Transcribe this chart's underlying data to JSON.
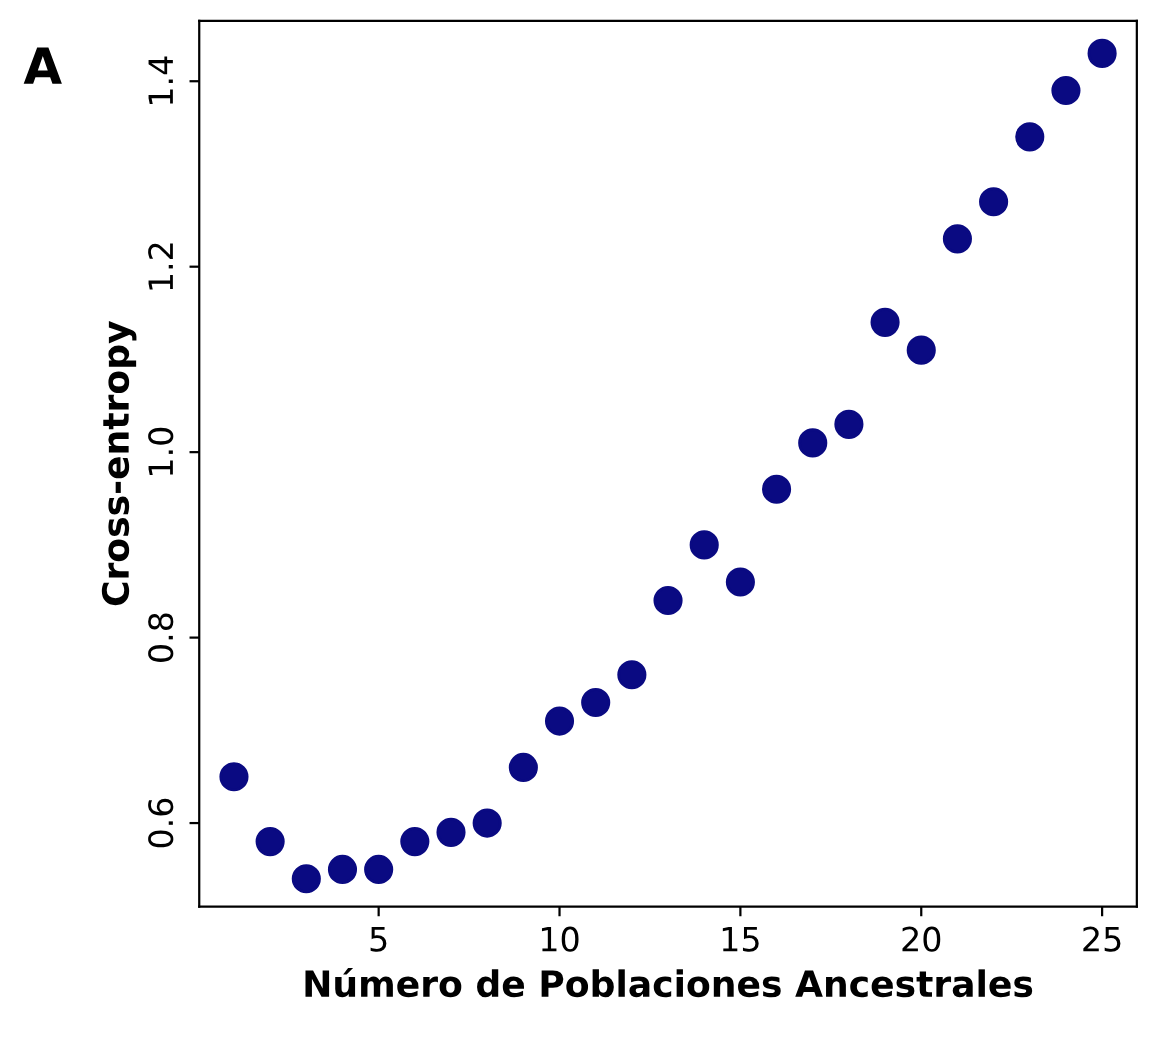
{
  "chart_data": {
    "type": "scatter",
    "xlabel": "Número de Poblaciones Ancestrales",
    "ylabel": "Cross-entropy",
    "annotations": [
      "A"
    ],
    "x": [
      1,
      2,
      3,
      4,
      5,
      6,
      7,
      8,
      9,
      10,
      11,
      12,
      13,
      14,
      15,
      16,
      17,
      18,
      19,
      20,
      21,
      22,
      23,
      24,
      25
    ],
    "series": [
      {
        "color": "#0a0a82",
        "values": [
          0.65,
          0.58,
          0.54,
          0.55,
          0.55,
          0.58,
          0.59,
          0.6,
          0.66,
          0.71,
          0.73,
          0.76,
          0.84,
          0.9,
          0.86,
          0.96,
          1.01,
          1.03,
          1.14,
          1.11,
          1.23,
          1.27,
          1.34,
          1.39,
          1.43
        ]
      }
    ],
    "xlim": [
      0.04,
      25.96
    ],
    "ylim": [
      0.51,
      1.465
    ],
    "xticks": [
      5,
      10,
      15,
      20,
      25
    ],
    "yticks": [
      0.6,
      0.8,
      {
        "value": 1.0,
        "label": "1.0"
      },
      1.2,
      1.4
    ],
    "marker": "circle",
    "grid": false,
    "legend": false
  }
}
